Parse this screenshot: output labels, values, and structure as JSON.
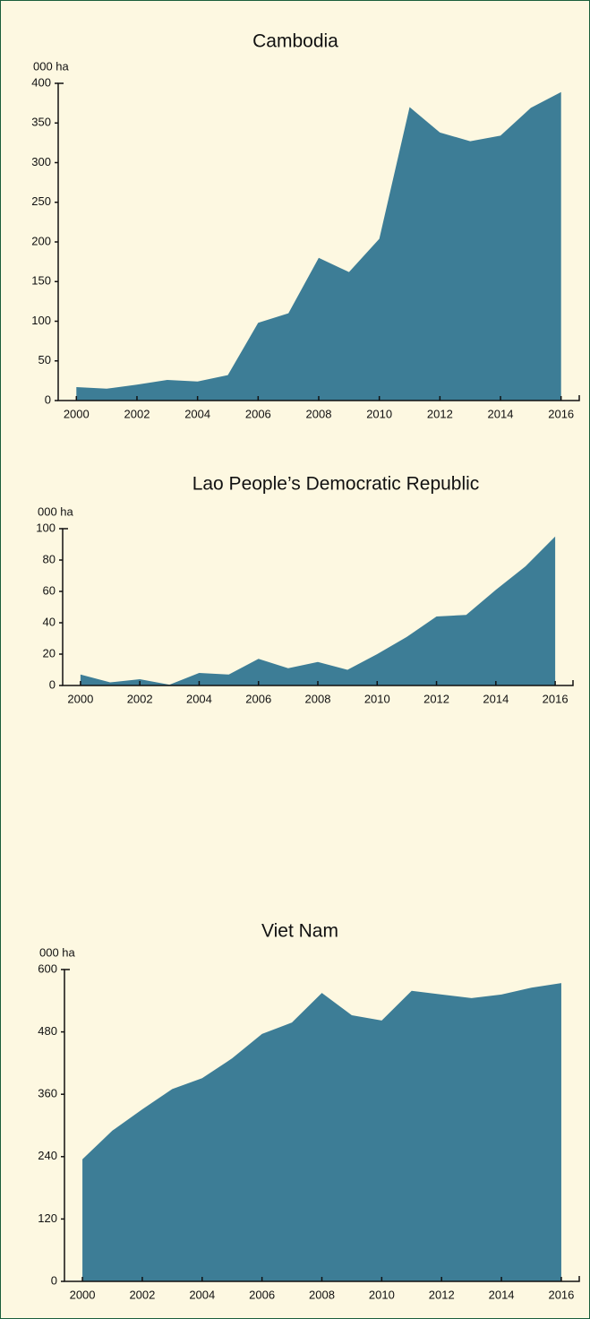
{
  "chart_data": [
    {
      "type": "area",
      "title": "Cambodia",
      "y_label": "000 ha",
      "color": "#3d7d96",
      "x": [
        2000,
        2001,
        2002,
        2003,
        2004,
        2005,
        2006,
        2007,
        2008,
        2009,
        2010,
        2011,
        2012,
        2013,
        2014,
        2015,
        2016
      ],
      "values": [
        17,
        15,
        20,
        26,
        24,
        32,
        98,
        110,
        180,
        162,
        204,
        370,
        338,
        327,
        334,
        369,
        389
      ],
      "xlim": [
        1999.4,
        2016.6
      ],
      "xticks": [
        2000,
        2002,
        2004,
        2006,
        2008,
        2010,
        2012,
        2014,
        2016
      ],
      "ylim": [
        0,
        400
      ],
      "yticks": [
        0,
        50,
        100,
        150,
        200,
        250,
        300,
        350,
        400
      ]
    },
    {
      "type": "area",
      "title": "Lao People’s Democratic Republic",
      "y_label": "000 ha",
      "color": "#3d7d96",
      "x": [
        2000,
        2001,
        2002,
        2003,
        2004,
        2005,
        2006,
        2007,
        2008,
        2009,
        2010,
        2011,
        2012,
        2013,
        2014,
        2015,
        2016
      ],
      "values": [
        7,
        2,
        4,
        0.5,
        8,
        7,
        17,
        11,
        15,
        10,
        20,
        31,
        44,
        45,
        61,
        76,
        95
      ],
      "xlim": [
        1999.4,
        2016.6
      ],
      "xticks": [
        2000,
        2002,
        2004,
        2006,
        2008,
        2010,
        2012,
        2014,
        2016
      ],
      "ylim": [
        0,
        100
      ],
      "yticks": [
        0,
        20,
        40,
        60,
        80,
        100
      ]
    },
    {
      "type": "area",
      "title": "Viet Nam",
      "y_label": "000 ha",
      "color": "#3d7d96",
      "x": [
        2000,
        2001,
        2002,
        2003,
        2004,
        2005,
        2006,
        2007,
        2008,
        2009,
        2010,
        2011,
        2012,
        2013,
        2014,
        2015,
        2016
      ],
      "values": [
        235,
        290,
        331,
        370,
        391,
        429,
        476,
        498,
        555,
        512,
        502,
        559,
        552,
        545,
        552,
        565,
        574
      ],
      "xlim": [
        1999.4,
        2016.6
      ],
      "xticks": [
        2000,
        2002,
        2004,
        2006,
        2008,
        2010,
        2012,
        2014,
        2016
      ],
      "ylim": [
        0,
        600
      ],
      "yticks": [
        0,
        120,
        240,
        360,
        480,
        600
      ]
    }
  ]
}
